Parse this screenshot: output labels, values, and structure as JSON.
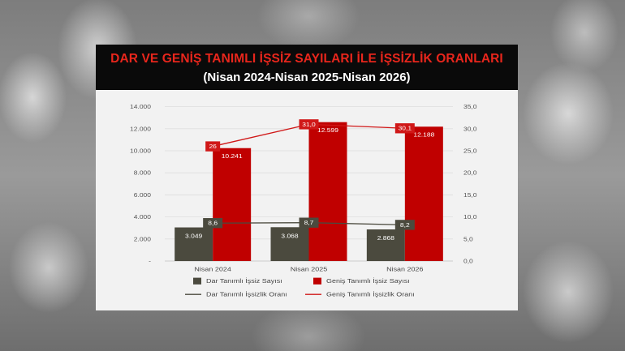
{
  "header": {
    "title": "DAR VE GENİŞ TANIMLI İŞSİZ SAYILARI İLE İŞSİZLİK ORANLARI",
    "subtitle": "(Nisan 2024-Nisan 2025-Nisan 2026)"
  },
  "colors": {
    "title_red": "#e8261c",
    "bar_dark": "#4b4a3e",
    "bar_red": "#c00000",
    "line_dark": "#4b4a3e",
    "line_red": "#d01818",
    "panel_bg": "#f2f2f2"
  },
  "chart_data": {
    "type": "bar",
    "categories": [
      "Nisan 2024",
      "Nisan 2025",
      "Nisan 2026"
    ],
    "series": [
      {
        "name": "Dar Tanımlı İşsiz Sayısı",
        "kind": "bar",
        "axis": "left",
        "values": [
          3049,
          3068,
          2868
        ],
        "labels": [
          "3.049",
          "3.068",
          "2.868"
        ]
      },
      {
        "name": "Geniş Tanımlı İşsiz Sayısı",
        "kind": "bar",
        "axis": "left",
        "values": [
          10241,
          12599,
          12188
        ],
        "labels": [
          "10.241",
          "12.599",
          "12.188"
        ]
      },
      {
        "name": "Dar Tanımlı İşsizlik Oranı",
        "kind": "line",
        "axis": "right",
        "values": [
          8.6,
          8.7,
          8.2
        ],
        "labels": [
          "8,6",
          "8,7",
          "8,2"
        ]
      },
      {
        "name": "Geniş Tanımlı İşsizlik Oranı",
        "kind": "line",
        "axis": "right",
        "values": [
          26.0,
          31.0,
          30.1
        ],
        "labels": [
          "26",
          "31,0",
          "30,1"
        ]
      }
    ],
    "y_left": {
      "range": [
        0,
        14000
      ],
      "ticks": [
        0,
        2000,
        4000,
        6000,
        8000,
        10000,
        12000,
        14000
      ],
      "tick_labels": [
        "-",
        "2.000",
        "4.000",
        "6.000",
        "8.000",
        "10.000",
        "12.000",
        "14.000"
      ]
    },
    "y_right": {
      "range": [
        0,
        35
      ],
      "ticks": [
        0,
        5,
        10,
        15,
        20,
        25,
        30,
        35
      ],
      "tick_labels": [
        "0,0",
        "5,0",
        "10,0",
        "15,0",
        "20,0",
        "25,0",
        "30,0",
        "35,0"
      ]
    },
    "grid": true,
    "legend_position": "bottom"
  }
}
